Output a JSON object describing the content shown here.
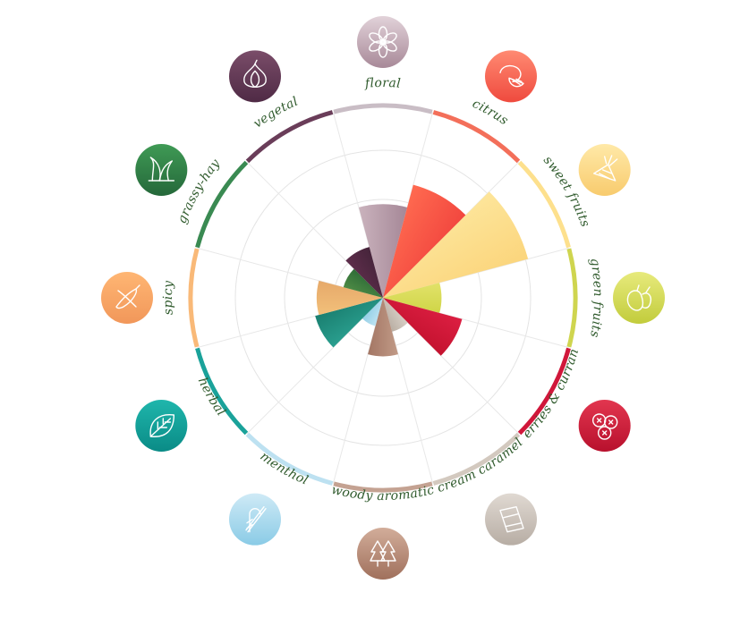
{
  "chart_data": {
    "type": "radial-bar",
    "title": "",
    "rmax": 100,
    "categories": [
      {
        "key": "floral",
        "label": "floral",
        "value": 48,
        "colors": [
          "#cab3bd",
          "#a58797"
        ],
        "icon": "flower-icon"
      },
      {
        "key": "citrus",
        "label": "citrus",
        "value": 60,
        "colors": [
          "#ff6a50",
          "#f2473f"
        ],
        "icon": "lemon-icon"
      },
      {
        "key": "sweet_fruits",
        "label": "sweet fruits",
        "value": 77,
        "colors": [
          "#fde59a",
          "#fbd57c"
        ],
        "icon": "pineapple-icon"
      },
      {
        "key": "green_fruits",
        "label": "green fruits",
        "value": 30,
        "colors": [
          "#e2e26a",
          "#cfd547"
        ],
        "icon": "pear-icon"
      },
      {
        "key": "berries",
        "label": "berries & currant",
        "value": 42,
        "colors": [
          "#dc1f42",
          "#c4122f"
        ],
        "icon": "berries-icon"
      },
      {
        "key": "cream_caramel",
        "label": "cream caramel",
        "value": 18,
        "colors": [
          "#d7cfc6",
          "#b9aea3"
        ],
        "icon": "caramel-icon"
      },
      {
        "key": "woody_aromatic",
        "label": "woody aromatic",
        "value": 30,
        "colors": [
          "#c19a87",
          "#a37664"
        ],
        "icon": "trees-icon"
      },
      {
        "key": "menthol",
        "label": "menthol",
        "value": 15,
        "colors": [
          "#bfe3f2",
          "#93cfe6"
        ],
        "icon": "candy-cane-icon"
      },
      {
        "key": "herbal",
        "label": "herbal",
        "value": 36,
        "colors": [
          "#2a9f8f",
          "#1a7f70"
        ],
        "icon": "leaf-icon"
      },
      {
        "key": "spicy",
        "label": "spicy",
        "value": 34,
        "colors": [
          "#f2c07a",
          "#e6a96a"
        ],
        "icon": "chili-icon"
      },
      {
        "key": "grassy_hay",
        "label": "grassy-hay",
        "value": 21,
        "colors": [
          "#4e8b45",
          "#2f6d38"
        ],
        "icon": "grass-icon"
      },
      {
        "key": "vegetal",
        "label": "vegetal",
        "value": 27,
        "colors": [
          "#5e2d4b",
          "#45243a"
        ],
        "icon": "onion-icon"
      }
    ],
    "rim_colors": [
      "#c9bdc5",
      "#f36f5a",
      "#fde08d",
      "#cfd54f",
      "#d0173a",
      "#d3c9bf",
      "#c4a292",
      "#bde1f1",
      "#1aa29a",
      "#f9b978",
      "#3a8a52",
      "#6a3d59"
    ],
    "icon_colors": [
      [
        "#e2d2d9",
        "#a88998"
      ],
      [
        "#ff8a72",
        "#ef4a3e"
      ],
      [
        "#ffe9a8",
        "#f8cb6e"
      ],
      [
        "#e7ea7c",
        "#c2cc3c"
      ],
      [
        "#e2364f",
        "#b8102d"
      ],
      [
        "#e0d9d2",
        "#b7ada4"
      ],
      [
        "#d2ad9a",
        "#a0705c"
      ],
      [
        "#cfeaf6",
        "#8acbe6"
      ],
      [
        "#1fb6ac",
        "#0a8b86"
      ],
      [
        "#ffb673",
        "#f1975a"
      ],
      [
        "#3f9a55",
        "#25683a"
      ],
      [
        "#7a4d69",
        "#4f2a45"
      ]
    ],
    "grid": true
  }
}
